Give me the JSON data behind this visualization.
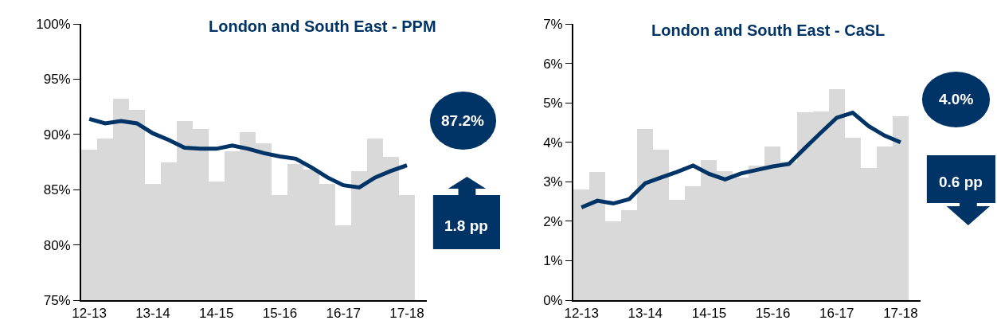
{
  "chart_data": [
    {
      "type": "bar",
      "title": "London and South East - PPM",
      "categories": [
        "12-13",
        null,
        null,
        null,
        "13-14",
        null,
        null,
        null,
        "14-15",
        null,
        null,
        null,
        "15-16",
        null,
        null,
        null,
        "16-17",
        null,
        null,
        null,
        "17-18"
      ],
      "series": [
        {
          "color": "#d9d9d9",
          "values": [
            88.6,
            89.6,
            93.2,
            92.2,
            85.5,
            87.5,
            91.2,
            90.5,
            85.7,
            88.5,
            90.2,
            89.2,
            84.5,
            87.3,
            86.8,
            85.5,
            81.8,
            86.7,
            89.6,
            88.0,
            84.5
          ]
        },
        {
          "type": "line",
          "color": "#003366",
          "values": [
            91.4,
            91.0,
            91.2,
            91.0,
            90.1,
            89.5,
            88.8,
            88.7,
            88.7,
            89.0,
            88.7,
            88.3,
            88.0,
            87.8,
            87.0,
            86.1,
            85.4,
            85.2,
            86.1,
            86.7,
            87.2
          ]
        }
      ],
      "ylim": [
        75,
        100
      ],
      "yticks": [
        {
          "value": 75,
          "label": "75%"
        },
        {
          "value": 80,
          "label": "80%"
        },
        {
          "value": 85,
          "label": "85%"
        },
        {
          "value": 90,
          "label": "90%"
        },
        {
          "value": 95,
          "label": "95%"
        },
        {
          "value": 100,
          "label": "100%"
        }
      ],
      "annotations": [
        "87.2%",
        "1.8 pp"
      ]
    },
    {
      "type": "bar",
      "title": "London and South East - CaSL",
      "categories": [
        "12-13",
        null,
        null,
        null,
        "13-14",
        null,
        null,
        null,
        "14-15",
        null,
        null,
        null,
        "15-16",
        null,
        null,
        null,
        "16-17",
        null,
        null,
        null,
        "17-18"
      ],
      "series": [
        {
          "color": "#d9d9d9",
          "values": [
            2.8,
            3.24,
            1.99,
            2.27,
            4.34,
            3.81,
            2.54,
            2.88,
            3.56,
            3.26,
            3.1,
            3.4,
            3.89,
            3.51,
            4.76,
            4.79,
            5.34,
            4.11,
            3.34,
            3.89,
            4.66
          ]
        },
        {
          "type": "line",
          "color": "#003366",
          "values": [
            2.35,
            2.52,
            2.45,
            2.56,
            2.96,
            3.11,
            3.25,
            3.41,
            3.2,
            3.06,
            3.21,
            3.3,
            3.39,
            3.45,
            3.85,
            4.24,
            4.62,
            4.75,
            4.41,
            4.17,
            4.0
          ]
        }
      ],
      "ylim": [
        0,
        7
      ],
      "yticks": [
        {
          "value": 0,
          "label": "0%"
        },
        {
          "value": 1,
          "label": "1%"
        },
        {
          "value": 2,
          "label": "2%"
        },
        {
          "value": 3,
          "label": "3%"
        },
        {
          "value": 4,
          "label": "4%"
        },
        {
          "value": 5,
          "label": "5%"
        },
        {
          "value": 6,
          "label": "6%"
        },
        {
          "value": 7,
          "label": "7%"
        }
      ],
      "annotations": [
        "4.0%",
        "0.6 pp"
      ]
    }
  ]
}
